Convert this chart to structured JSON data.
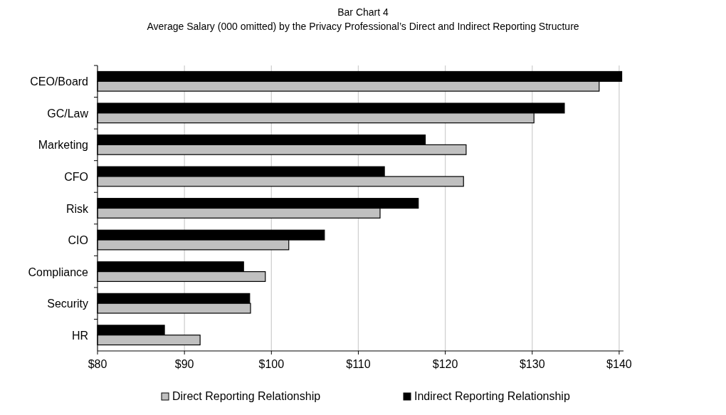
{
  "chart_data": {
    "type": "bar",
    "orientation": "horizontal",
    "title": "Bar Chart 4",
    "subtitle": "Average Salary (000 omitted) by the Privacy Professional’s Direct and Indirect Reporting Structure",
    "categories": [
      "CEO/Board",
      "GC/Law",
      "Marketing",
      "CFO",
      "Risk",
      "CIO",
      "Compliance",
      "Security",
      "HR"
    ],
    "series": [
      {
        "name": "Indirect Reporting Relationship",
        "color": "#000000",
        "values": [
          140.3,
          133.7,
          117.7,
          113,
          116.9,
          106.1,
          96.8,
          97.5,
          87.7
        ]
      },
      {
        "name": "Direct Reporting Relationship",
        "color": "#c0c0c0",
        "values": [
          137.7,
          130.2,
          122.4,
          122.1,
          112.5,
          102,
          99.3,
          97.6,
          91.8
        ]
      }
    ],
    "xlim": [
      80,
      140.5
    ],
    "xticks": [
      {
        "value": 80,
        "label": "$80"
      },
      {
        "value": 90,
        "label": "$90"
      },
      {
        "value": 100,
        "label": "$100"
      },
      {
        "value": 110,
        "label": "$110"
      },
      {
        "value": 120,
        "label": "$120"
      },
      {
        "value": 130,
        "label": "$130"
      },
      {
        "value": 140,
        "label": "$140"
      }
    ],
    "grid": "x",
    "legend": "bottom"
  }
}
